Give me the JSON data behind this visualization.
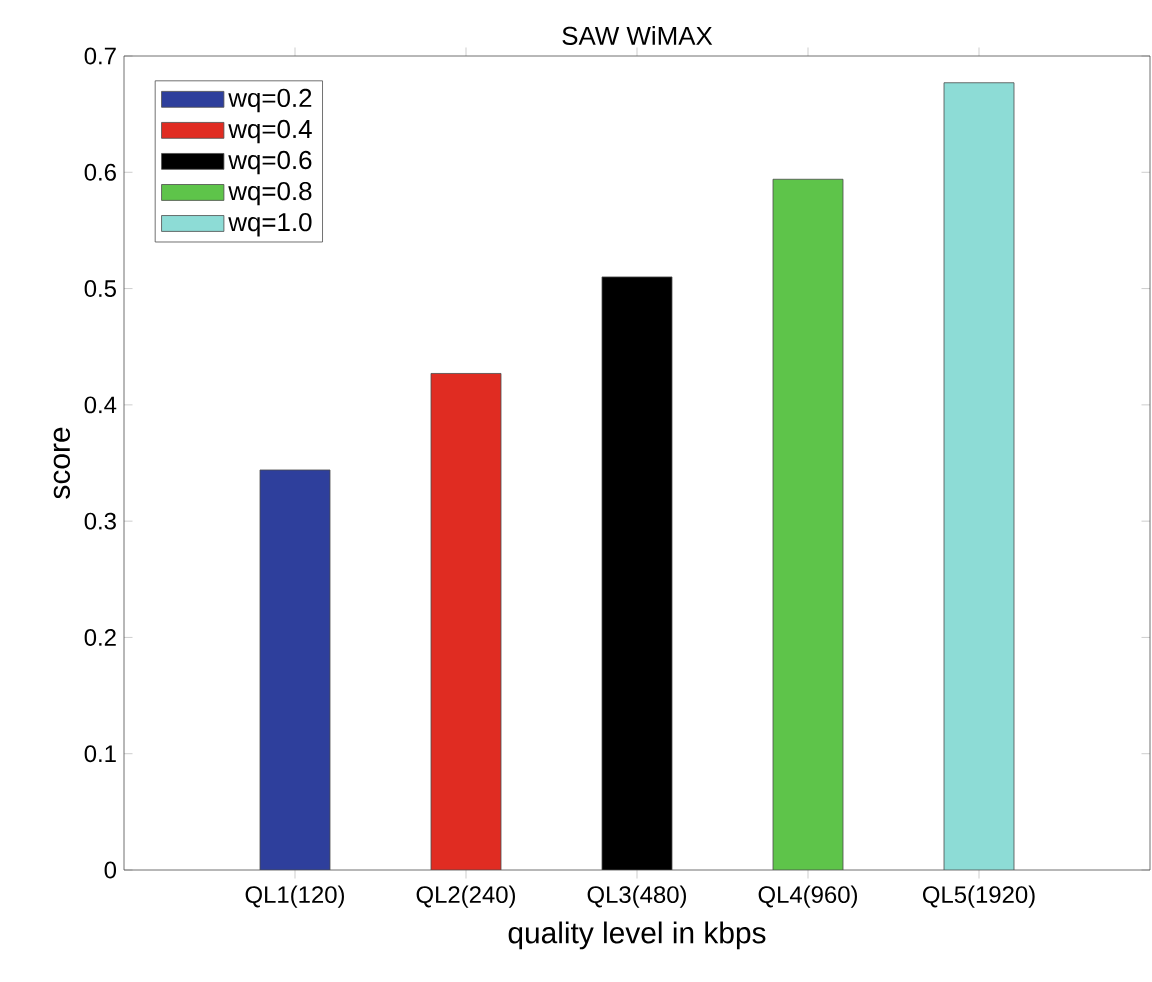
{
  "chart_data": {
    "type": "bar",
    "title": "SAW WiMAX",
    "xlabel": "quality level in kbps",
    "ylabel": "score",
    "categories": [
      "QL1(120)",
      "QL2(240)",
      "QL3(480)",
      "QL4(960)",
      "QL5(1920)"
    ],
    "series": [
      {
        "name": "wq=0.2",
        "color": "#2e3f9c",
        "values": [
          0.344,
          null,
          null,
          null,
          null
        ]
      },
      {
        "name": "wq=0.4",
        "color": "#e02c22",
        "values": [
          null,
          0.427,
          null,
          null,
          null
        ]
      },
      {
        "name": "wq=0.6",
        "color": "#000000",
        "values": [
          null,
          null,
          0.51,
          null,
          null
        ]
      },
      {
        "name": "wq=0.8",
        "color": "#5ec44a",
        "values": [
          null,
          null,
          null,
          0.594,
          null
        ]
      },
      {
        "name": "wq=1.0",
        "color": "#8ddcd6",
        "values": [
          null,
          null,
          null,
          null,
          0.677
        ]
      }
    ],
    "ylim": [
      0,
      0.7
    ],
    "yticks": [
      0,
      0.1,
      0.2,
      0.3,
      0.4,
      0.5,
      0.6,
      0.7
    ],
    "legend": "top left"
  }
}
